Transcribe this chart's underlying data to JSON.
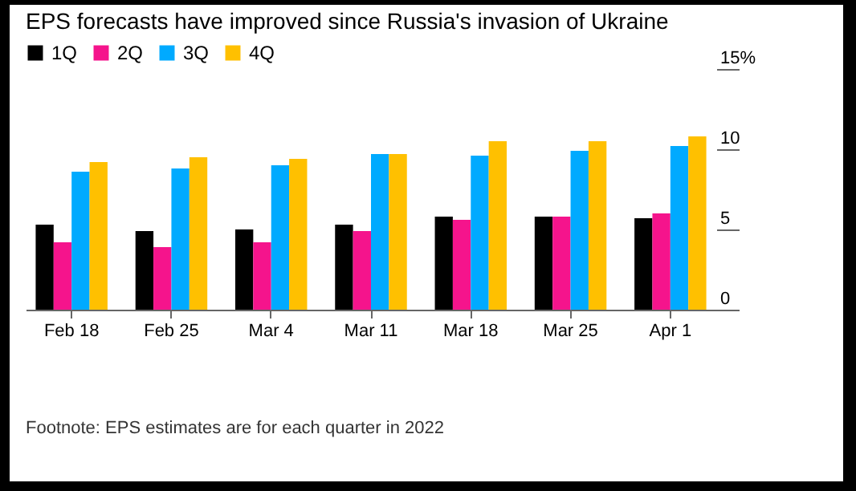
{
  "chart_data": {
    "type": "bar",
    "title": "EPS forecasts have improved since Russia's invasion of Ukraine",
    "categories": [
      "Feb 18",
      "Feb 25",
      "Mar 4",
      "Mar 11",
      "Mar 18",
      "Mar 25",
      "Apr 1"
    ],
    "series": [
      {
        "name": "1Q",
        "color": "#000000",
        "values": [
          5.3,
          4.9,
          5.0,
          5.3,
          5.8,
          5.8,
          5.7
        ]
      },
      {
        "name": "2Q",
        "color": "#f5148c",
        "values": [
          4.2,
          3.9,
          4.2,
          4.9,
          5.6,
          5.8,
          6.0
        ]
      },
      {
        "name": "3Q",
        "color": "#00aaff",
        "values": [
          8.6,
          8.8,
          9.0,
          9.7,
          9.6,
          9.9,
          10.2
        ]
      },
      {
        "name": "4Q",
        "color": "#ffc000",
        "values": [
          9.2,
          9.5,
          9.4,
          9.7,
          10.5,
          10.5,
          10.8
        ]
      }
    ],
    "ylim": [
      0,
      15
    ],
    "yticks": [
      0,
      5,
      10,
      {
        "value": 15,
        "label": "15%"
      }
    ],
    "grid": false,
    "legend": "top left",
    "annotations": [
      "Footnote: EPS estimates are for each quarter in 2022"
    ]
  }
}
